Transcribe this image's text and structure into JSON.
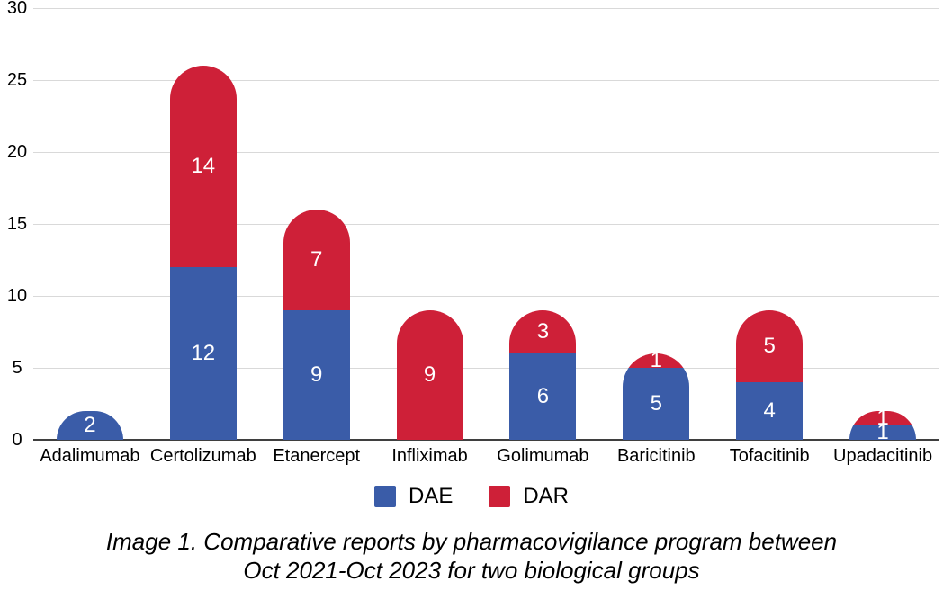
{
  "chart_data": {
    "type": "bar",
    "stacked": true,
    "categories": [
      "Adalimumab",
      "Certolizumab",
      "Etanercept",
      "Infliximab",
      "Golimumab",
      "Baricitinib",
      "Tofacitinib",
      "Upadacitinib"
    ],
    "series": [
      {
        "name": "DAE",
        "color": "#3A5CA8",
        "values": [
          2,
          12,
          9,
          0,
          6,
          5,
          4,
          1
        ]
      },
      {
        "name": "DAR",
        "color": "#CE2038",
        "values": [
          0,
          14,
          7,
          9,
          3,
          1,
          5,
          1
        ]
      }
    ],
    "totals": [
      2,
      26,
      16,
      9,
      9,
      6,
      9,
      2
    ],
    "ylim": [
      0,
      30
    ],
    "yticks": [
      0,
      5,
      10,
      15,
      20,
      25,
      30
    ],
    "grid": true,
    "legend_position": "bottom",
    "bar_label_color": "#FFFFFF",
    "title": ""
  },
  "colors": {
    "gridline": "#D9D9D9",
    "axis_line": "#3F3F3F",
    "background": "#FFFFFF",
    "text": "#000000"
  },
  "caption": {
    "line1": "Image 1. Comparative reports by pharmacovigilance program between",
    "line2": "Oct 2021-Oct 2023 for two biological groups"
  }
}
